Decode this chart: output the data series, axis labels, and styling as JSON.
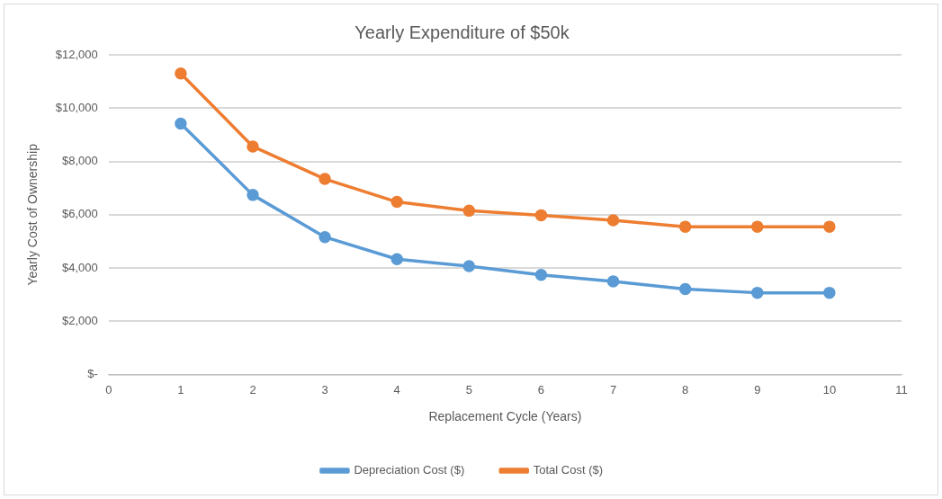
{
  "chart_data": {
    "type": "line",
    "title": "Yearly Expenditure of $50k",
    "xlabel": "Replacement Cycle (Years)",
    "ylabel": "Yearly Cost of Ownership",
    "x": [
      1,
      2,
      3,
      4,
      5,
      6,
      7,
      8,
      9,
      10
    ],
    "series": [
      {
        "name": "Depreciation Cost ($)",
        "color": "#5b9bd5",
        "values": [
          9420,
          6740,
          5160,
          4330,
          4070,
          3740,
          3500,
          3210,
          3070,
          3070
        ]
      },
      {
        "name": "Total Cost ($)",
        "color": "#ed7d31",
        "values": [
          11300,
          8560,
          7340,
          6480,
          6150,
          5980,
          5790,
          5550,
          5550,
          5550
        ]
      }
    ],
    "xlim": [
      0,
      11
    ],
    "xticks": [
      0,
      1,
      2,
      3,
      4,
      5,
      6,
      7,
      8,
      9,
      10,
      11
    ],
    "ylim": [
      0,
      12000
    ],
    "yticks": [
      {
        "value": 0,
        "label": "$-"
      },
      {
        "value": 2000,
        "label": "$2,000"
      },
      {
        "value": 4000,
        "label": "$4,000"
      },
      {
        "value": 6000,
        "label": "$6,000"
      },
      {
        "value": 8000,
        "label": "$8,000"
      },
      {
        "value": 10000,
        "label": "$10,000"
      },
      {
        "value": 12000,
        "label": "$12,000"
      }
    ],
    "grid": "y",
    "legend": "bottom",
    "marker": "circle",
    "line_style": "solid"
  }
}
